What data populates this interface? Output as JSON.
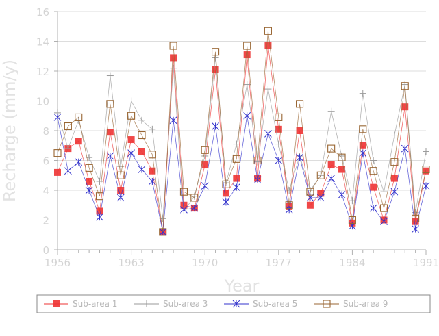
{
  "chart_data": {
    "type": "line",
    "title": "",
    "xlabel": "Year",
    "ylabel": "Recharge (mm/y)",
    "xlim": [
      1956,
      1991
    ],
    "ylim": [
      0,
      16
    ],
    "xticks": [
      1956,
      1963,
      1970,
      1977,
      1984,
      1991
    ],
    "yticks": [
      0,
      2,
      4,
      6,
      8,
      10,
      12,
      14,
      16
    ],
    "xtick_labels": [
      "1956",
      "1963",
      "1970",
      "1977",
      "1984",
      "1991"
    ],
    "ytick_labels": [
      "0",
      "2",
      "4",
      "6",
      "8",
      "10",
      "12",
      "14",
      "16"
    ],
    "grid": "horizontal",
    "legend_position": "bottom",
    "x": [
      1956,
      1957,
      1958,
      1959,
      1960,
      1961,
      1962,
      1963,
      1964,
      1965,
      1966,
      1967,
      1968,
      1969,
      1970,
      1971,
      1972,
      1973,
      1974,
      1975,
      1976,
      1977,
      1978,
      1979,
      1980,
      1981,
      1982,
      1983,
      1984,
      1985,
      1986,
      1987,
      1988,
      1989,
      1990,
      1991
    ],
    "series": [
      {
        "name": "Sub-area 1",
        "color": "#ee3333",
        "marker": "filled-square",
        "values": [
          5.2,
          6.8,
          7.3,
          4.6,
          2.6,
          7.9,
          4.0,
          7.4,
          6.6,
          5.3,
          1.2,
          12.9,
          3.0,
          2.8,
          5.7,
          12.1,
          3.8,
          4.8,
          13.1,
          4.8,
          13.7,
          8.1,
          2.9,
          8.0,
          3.0,
          3.8,
          5.7,
          5.4,
          1.8,
          7.0,
          4.2,
          2.0,
          4.8,
          9.6,
          1.9,
          5.3
        ]
      },
      {
        "name": "Sub-area 3",
        "color": "#999999",
        "marker": "plus",
        "values": [
          9.2,
          6.8,
          8.7,
          6.2,
          4.6,
          11.7,
          5.6,
          10.0,
          8.7,
          8.1,
          2.1,
          12.2,
          2.6,
          3.6,
          6.3,
          12.9,
          4.5,
          7.1,
          11.1,
          5.9,
          10.8,
          7.1,
          4.0,
          6.3,
          4.0,
          5.0,
          9.3,
          6.3,
          3.3,
          10.5,
          6.0,
          3.9,
          7.7,
          11.1,
          2.5,
          6.6
        ]
      },
      {
        "name": "Sub-area 5",
        "color": "#3333cc",
        "marker": "asterisk",
        "values": [
          8.9,
          5.3,
          5.9,
          4.0,
          2.2,
          6.3,
          3.5,
          6.5,
          5.4,
          4.6,
          1.2,
          8.7,
          2.7,
          2.8,
          4.3,
          8.3,
          3.2,
          4.2,
          9.0,
          4.7,
          7.8,
          6.0,
          2.7,
          6.2,
          3.5,
          3.5,
          4.8,
          3.7,
          1.6,
          6.5,
          2.8,
          1.9,
          3.9,
          6.8,
          1.4,
          4.3
        ]
      },
      {
        "name": "Sub-area 9",
        "color": "#996633",
        "marker": "open-square",
        "values": [
          6.5,
          8.3,
          8.9,
          5.5,
          3.6,
          9.8,
          5.0,
          9.0,
          7.7,
          6.4,
          1.2,
          13.7,
          3.9,
          3.5,
          6.7,
          13.3,
          4.4,
          6.1,
          13.7,
          6.0,
          14.7,
          8.9,
          3.0,
          9.8,
          3.9,
          5.0,
          6.8,
          6.2,
          2.0,
          8.1,
          5.3,
          2.8,
          5.9,
          11.0,
          2.1,
          5.4
        ]
      }
    ]
  }
}
